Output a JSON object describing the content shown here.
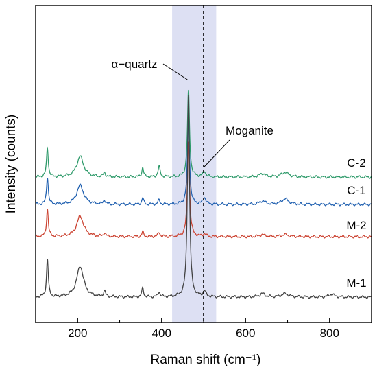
{
  "chart_data": {
    "type": "line",
    "title": "",
    "xlabel": "Raman shift (cm⁻¹)",
    "ylabel": "Intensity (counts)",
    "xlim": [
      100,
      900
    ],
    "x_ticks": [
      200,
      400,
      600,
      800
    ],
    "y_ticks": false,
    "grid": false,
    "legend": "none",
    "highlight_band": {
      "x0": 425,
      "x1": 530,
      "color": "#dde0f3"
    },
    "reference_line": {
      "x": 500,
      "style": "dashed",
      "color": "#000000"
    },
    "annotations": [
      {
        "text": "α−quartz",
        "x": 463,
        "arrow": true
      },
      {
        "text": "Moganite",
        "x": 500,
        "arrow": true
      }
    ],
    "series": [
      {
        "name": "C-2",
        "color": "#2e9a6a",
        "peaks": [
          {
            "x": 128,
            "height": 0.42,
            "width": 2.5
          },
          {
            "x": 206,
            "height": 0.3,
            "width": 10
          },
          {
            "x": 264,
            "height": 0.06,
            "width": 3
          },
          {
            "x": 355,
            "height": 0.14,
            "width": 2.5
          },
          {
            "x": 394,
            "height": 0.15,
            "width": 3
          },
          {
            "x": 464,
            "height": 1.25,
            "width": 3
          },
          {
            "x": 502,
            "height": 0.08,
            "width": 4
          },
          {
            "x": 640,
            "height": 0.05,
            "width": 8
          },
          {
            "x": 694,
            "height": 0.07,
            "width": 10
          }
        ]
      },
      {
        "name": "C-1",
        "color": "#2060b0",
        "peaks": [
          {
            "x": 128,
            "height": 0.4,
            "width": 2.5
          },
          {
            "x": 206,
            "height": 0.28,
            "width": 10
          },
          {
            "x": 264,
            "height": 0.06,
            "width": 3
          },
          {
            "x": 355,
            "height": 0.1,
            "width": 2.5
          },
          {
            "x": 394,
            "height": 0.06,
            "width": 3
          },
          {
            "x": 464,
            "height": 1.25,
            "width": 3
          },
          {
            "x": 502,
            "height": 0.1,
            "width": 4
          },
          {
            "x": 640,
            "height": 0.05,
            "width": 8
          },
          {
            "x": 694,
            "height": 0.08,
            "width": 10
          }
        ]
      },
      {
        "name": "M-2",
        "color": "#cc4433",
        "peaks": [
          {
            "x": 128,
            "height": 0.4,
            "width": 2.5
          },
          {
            "x": 206,
            "height": 0.3,
            "width": 10
          },
          {
            "x": 264,
            "height": 0.05,
            "width": 3
          },
          {
            "x": 355,
            "height": 0.07,
            "width": 2.5
          },
          {
            "x": 394,
            "height": 0.06,
            "width": 3
          },
          {
            "x": 464,
            "height": 1.4,
            "width": 3
          },
          {
            "x": 502,
            "height": 0.04,
            "width": 4
          },
          {
            "x": 640,
            "height": 0.03,
            "width": 8
          },
          {
            "x": 694,
            "height": 0.03,
            "width": 10
          }
        ]
      },
      {
        "name": "M-1",
        "color": "#404040",
        "peaks": [
          {
            "x": 128,
            "height": 0.55,
            "width": 2.5
          },
          {
            "x": 206,
            "height": 0.45,
            "width": 10
          },
          {
            "x": 264,
            "height": 0.08,
            "width": 3
          },
          {
            "x": 355,
            "height": 0.13,
            "width": 2.5
          },
          {
            "x": 394,
            "height": 0.07,
            "width": 3
          },
          {
            "x": 464,
            "height": 2.95,
            "width": 3
          },
          {
            "x": 502,
            "height": 0.08,
            "width": 4
          },
          {
            "x": 640,
            "height": 0.05,
            "width": 8
          },
          {
            "x": 694,
            "height": 0.05,
            "width": 10
          },
          {
            "x": 805,
            "height": 0.04,
            "width": 8
          }
        ]
      }
    ]
  }
}
